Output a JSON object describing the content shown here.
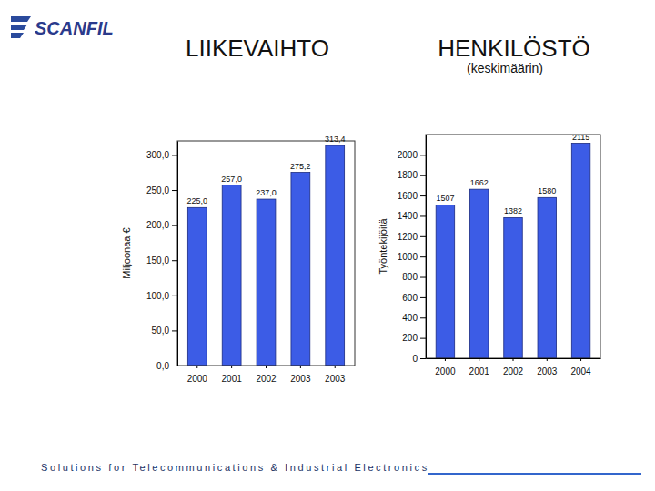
{
  "header": {
    "logo": "SCANFIL"
  },
  "chart_data": [
    {
      "type": "bar",
      "title": "LIIKEVAIHTO",
      "y_label": "Miljoonaa €",
      "categories": [
        "2000",
        "2001",
        "2002",
        "2003",
        "2003"
      ],
      "values": [
        225.0,
        257.0,
        237.0,
        275.2,
        313.4
      ],
      "value_labels": [
        "225,0",
        "257,0",
        "237,0",
        "275,2",
        "313,4"
      ],
      "data_labels": true,
      "color": "#3c5ce6",
      "grid": false,
      "ylim": [
        0,
        320
      ],
      "yticks": [
        {
          "value": 0,
          "label": "0,0"
        },
        {
          "value": 50,
          "label": "50,0"
        },
        {
          "value": 100,
          "label": "100,0"
        },
        {
          "value": 150,
          "label": "150,0"
        },
        {
          "value": 200,
          "label": "200,0"
        },
        {
          "value": 250,
          "label": "250,0"
        },
        {
          "value": 300,
          "label": "300,0"
        }
      ]
    },
    {
      "type": "bar",
      "title": "HENKILÖSTÖ",
      "subtitle": "(keskimäärin)",
      "y_label": "Työntekijöitä",
      "categories": [
        "2000",
        "2001",
        "2002",
        "2003",
        "2004"
      ],
      "values": [
        1507,
        1662,
        1382,
        1580,
        2115
      ],
      "data_labels": true,
      "color": "#3c5ce6",
      "grid": false,
      "ylim": [
        0,
        2200
      ],
      "yticks": [
        0,
        200,
        400,
        600,
        800,
        1000,
        1200,
        1400,
        1600,
        1800,
        2000
      ]
    }
  ],
  "footer": "Solutions for Telecommunications & Industrial Electronics"
}
